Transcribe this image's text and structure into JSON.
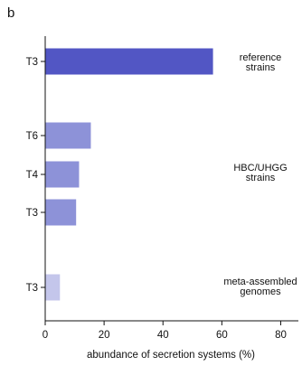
{
  "panel_label": "b",
  "chart_data": {
    "type": "bar",
    "orientation": "horizontal",
    "categories": [
      "T3",
      "T6",
      "T4",
      "T3",
      "T3"
    ],
    "values": [
      57,
      15.5,
      11.5,
      10.5,
      5
    ],
    "bar_colors": [
      "#5256c4",
      "#8d92d8",
      "#8d92d8",
      "#8d92d8",
      "#c4c6eb"
    ],
    "groups": [
      {
        "label_lines": [
          "reference",
          "strains"
        ],
        "bars": [
          0
        ]
      },
      {
        "label_lines": [
          "HBC/UHGG",
          "strains"
        ],
        "bars": [
          1,
          2,
          3
        ]
      },
      {
        "label_lines": [
          "meta-assembled",
          "genomes"
        ],
        "bars": [
          4
        ]
      }
    ],
    "xlabel": "abundance of secretion systems (%)",
    "xticks": [
      0,
      20,
      40,
      60,
      80
    ],
    "xlim": [
      0,
      86
    ],
    "grid": false
  }
}
